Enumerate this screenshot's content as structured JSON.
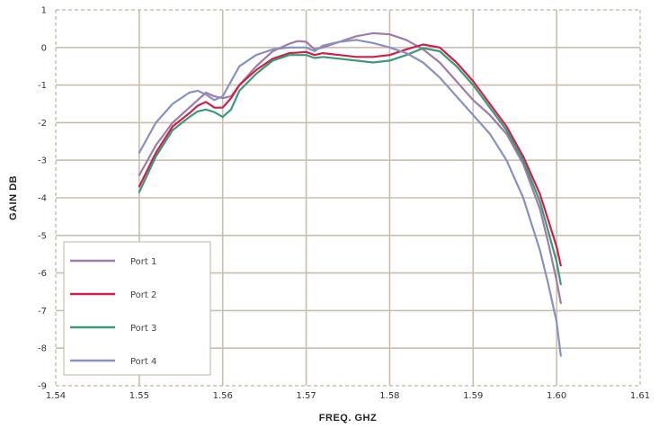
{
  "chart_data": {
    "type": "line",
    "title": "",
    "xlabel": "FREQ. GHZ",
    "ylabel": "GAIN DB",
    "xlim": [
      1.54,
      1.61
    ],
    "ylim": [
      -9,
      1
    ],
    "x_ticks": [
      "1.54",
      "1.55",
      "1.56",
      "1.57",
      "1.58",
      "1.59",
      "1.60",
      "1.61"
    ],
    "y_ticks": [
      "1",
      "0",
      "-1",
      "-2",
      "-3",
      "-4",
      "-5",
      "-6",
      "-7",
      "-8",
      "-9"
    ],
    "grid": true,
    "legend_position": "bottom-left",
    "series": [
      {
        "name": "Port 1",
        "color": "#a07aa8",
        "points": [
          [
            1.55,
            -3.4
          ],
          [
            1.552,
            -2.6
          ],
          [
            1.554,
            -2.0
          ],
          [
            1.556,
            -1.6
          ],
          [
            1.557,
            -1.4
          ],
          [
            1.558,
            -1.2
          ],
          [
            1.559,
            -1.3
          ],
          [
            1.56,
            -1.35
          ],
          [
            1.561,
            -1.3
          ],
          [
            1.562,
            -1.0
          ],
          [
            1.564,
            -0.5
          ],
          [
            1.566,
            -0.1
          ],
          [
            1.568,
            0.1
          ],
          [
            1.569,
            0.17
          ],
          [
            1.57,
            0.15
          ],
          [
            1.571,
            -0.05
          ],
          [
            1.572,
            0.0
          ],
          [
            1.574,
            0.15
          ],
          [
            1.576,
            0.3
          ],
          [
            1.578,
            0.38
          ],
          [
            1.58,
            0.35
          ],
          [
            1.582,
            0.2
          ],
          [
            1.584,
            -0.05
          ],
          [
            1.586,
            -0.4
          ],
          [
            1.588,
            -0.9
          ],
          [
            1.59,
            -1.4
          ],
          [
            1.592,
            -1.8
          ],
          [
            1.594,
            -2.3
          ],
          [
            1.596,
            -3.1
          ],
          [
            1.598,
            -4.3
          ],
          [
            1.599,
            -5.2
          ],
          [
            1.6,
            -6.2
          ],
          [
            1.6005,
            -6.8
          ]
        ]
      },
      {
        "name": "Port 2",
        "color": "#d0204a",
        "points": [
          [
            1.55,
            -3.7
          ],
          [
            1.552,
            -2.8
          ],
          [
            1.554,
            -2.1
          ],
          [
            1.556,
            -1.75
          ],
          [
            1.557,
            -1.55
          ],
          [
            1.558,
            -1.45
          ],
          [
            1.559,
            -1.6
          ],
          [
            1.56,
            -1.6
          ],
          [
            1.561,
            -1.35
          ],
          [
            1.562,
            -1.0
          ],
          [
            1.564,
            -0.6
          ],
          [
            1.566,
            -0.3
          ],
          [
            1.568,
            -0.15
          ],
          [
            1.57,
            -0.12
          ],
          [
            1.571,
            -0.2
          ],
          [
            1.572,
            -0.15
          ],
          [
            1.574,
            -0.2
          ],
          [
            1.576,
            -0.25
          ],
          [
            1.578,
            -0.25
          ],
          [
            1.58,
            -0.2
          ],
          [
            1.582,
            -0.05
          ],
          [
            1.584,
            0.08
          ],
          [
            1.586,
            0.0
          ],
          [
            1.588,
            -0.4
          ],
          [
            1.59,
            -0.9
          ],
          [
            1.592,
            -1.5
          ],
          [
            1.594,
            -2.1
          ],
          [
            1.596,
            -2.9
          ],
          [
            1.598,
            -3.9
          ],
          [
            1.599,
            -4.6
          ],
          [
            1.6,
            -5.3
          ],
          [
            1.6005,
            -5.8
          ]
        ]
      },
      {
        "name": "Port 3",
        "color": "#3a9a7a",
        "points": [
          [
            1.55,
            -3.85
          ],
          [
            1.552,
            -2.9
          ],
          [
            1.554,
            -2.2
          ],
          [
            1.556,
            -1.85
          ],
          [
            1.557,
            -1.7
          ],
          [
            1.558,
            -1.65
          ],
          [
            1.559,
            -1.72
          ],
          [
            1.56,
            -1.85
          ],
          [
            1.561,
            -1.65
          ],
          [
            1.562,
            -1.15
          ],
          [
            1.564,
            -0.7
          ],
          [
            1.566,
            -0.35
          ],
          [
            1.568,
            -0.2
          ],
          [
            1.57,
            -0.2
          ],
          [
            1.571,
            -0.28
          ],
          [
            1.572,
            -0.25
          ],
          [
            1.574,
            -0.3
          ],
          [
            1.576,
            -0.35
          ],
          [
            1.578,
            -0.4
          ],
          [
            1.58,
            -0.35
          ],
          [
            1.582,
            -0.2
          ],
          [
            1.584,
            -0.02
          ],
          [
            1.586,
            -0.1
          ],
          [
            1.588,
            -0.5
          ],
          [
            1.59,
            -1.0
          ],
          [
            1.592,
            -1.6
          ],
          [
            1.594,
            -2.2
          ],
          [
            1.596,
            -3.0
          ],
          [
            1.598,
            -4.1
          ],
          [
            1.599,
            -4.9
          ],
          [
            1.6,
            -5.7
          ],
          [
            1.6005,
            -6.3
          ]
        ]
      },
      {
        "name": "Port 4",
        "color": "#8890c4",
        "points": [
          [
            1.55,
            -2.8
          ],
          [
            1.552,
            -2.0
          ],
          [
            1.554,
            -1.5
          ],
          [
            1.556,
            -1.2
          ],
          [
            1.557,
            -1.15
          ],
          [
            1.558,
            -1.25
          ],
          [
            1.559,
            -1.4
          ],
          [
            1.56,
            -1.3
          ],
          [
            1.561,
            -0.9
          ],
          [
            1.562,
            -0.5
          ],
          [
            1.564,
            -0.2
          ],
          [
            1.566,
            -0.05
          ],
          [
            1.568,
            0.0
          ],
          [
            1.57,
            0.0
          ],
          [
            1.571,
            -0.1
          ],
          [
            1.572,
            0.05
          ],
          [
            1.574,
            0.15
          ],
          [
            1.576,
            0.2
          ],
          [
            1.578,
            0.12
          ],
          [
            1.58,
            0.0
          ],
          [
            1.582,
            -0.15
          ],
          [
            1.584,
            -0.4
          ],
          [
            1.586,
            -0.8
          ],
          [
            1.588,
            -1.3
          ],
          [
            1.59,
            -1.8
          ],
          [
            1.592,
            -2.3
          ],
          [
            1.594,
            -3.0
          ],
          [
            1.596,
            -4.0
          ],
          [
            1.598,
            -5.4
          ],
          [
            1.599,
            -6.3
          ],
          [
            1.6,
            -7.3
          ],
          [
            1.6005,
            -8.2
          ]
        ]
      }
    ]
  }
}
